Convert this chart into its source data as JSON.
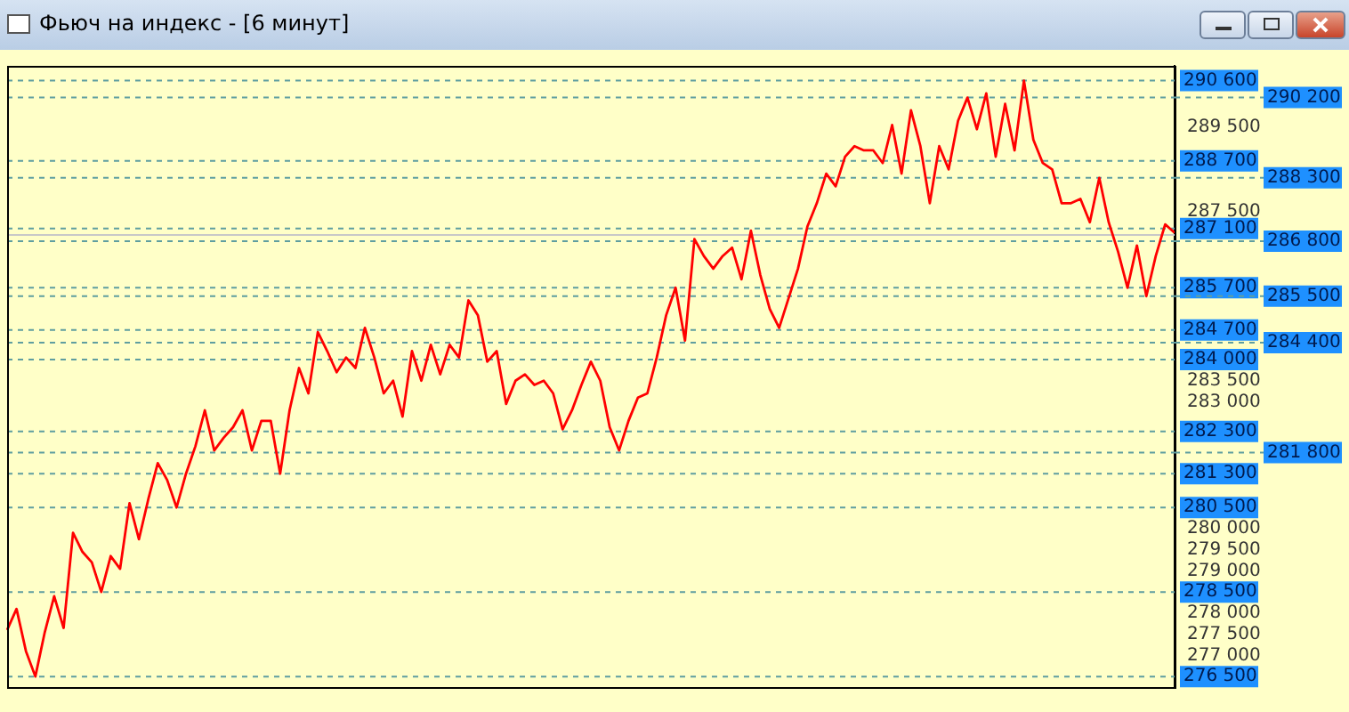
{
  "chart_data": {
    "type": "line",
    "title": "Фьюч на индекс - [6 минут]",
    "categories": [
      null,
      null,
      null,
      null,
      null,
      null,
      null,
      null,
      null,
      null,
      null,
      null,
      null,
      null,
      null,
      null,
      null,
      null,
      null,
      null,
      null,
      null,
      null,
      null,
      null,
      null,
      null,
      null,
      null,
      null,
      null,
      null,
      null,
      null,
      null,
      null,
      null,
      null,
      null,
      null,
      null,
      null,
      null,
      null,
      null,
      null,
      null,
      null,
      null,
      null,
      null,
      null,
      null,
      null,
      null,
      null,
      null,
      null,
      null,
      null,
      null,
      null,
      null,
      null,
      null,
      null,
      null,
      null,
      null,
      null,
      null,
      null,
      null,
      null,
      null,
      null,
      null,
      null,
      null,
      null,
      null,
      null,
      null,
      null,
      null,
      null,
      null,
      null,
      null,
      null,
      null,
      null,
      null,
      null,
      null,
      null,
      null,
      null,
      null,
      null,
      null,
      null,
      null,
      null,
      null,
      null,
      null,
      null,
      null,
      null,
      null,
      null,
      null,
      null,
      null,
      null,
      null,
      null,
      null,
      null,
      null,
      null,
      null,
      null,
      null
    ],
    "series": [
      {
        "color": "#ff0000",
        "values": [
          277600,
          278100,
          277100,
          276500,
          277550,
          278400,
          277650,
          279900,
          279450,
          279200,
          278500,
          279350,
          279050,
          280600,
          279750,
          280700,
          281550,
          281150,
          280500,
          281300,
          281950,
          282800,
          281850,
          282150,
          282400,
          282800,
          281850,
          282550,
          282550,
          281300,
          282800,
          283800,
          283200,
          284650,
          284200,
          283700,
          284050,
          283800,
          284750,
          284050,
          283200,
          283500,
          282650,
          284200,
          283500,
          284350,
          283650,
          284350,
          284050,
          285400,
          285050,
          283950,
          284200,
          282950,
          283500,
          283650,
          283400,
          283500,
          283200,
          282350,
          282800,
          283400,
          283950,
          283500,
          282400,
          281850,
          282550,
          283100,
          283200,
          284050,
          285050,
          285700,
          284450,
          286850,
          286450,
          286150,
          286450,
          286650,
          285900,
          287050,
          286000,
          285200,
          284750,
          285450,
          286150,
          287150,
          287700,
          288400,
          288100,
          288800,
          289050,
          288950,
          288950,
          288650,
          289550,
          288400,
          289900,
          289050,
          287700,
          289050,
          288500,
          289650,
          290200,
          289450,
          290300,
          288800,
          290050,
          288950,
          290600,
          289200,
          288650,
          288500,
          287700,
          287700,
          287800,
          287250,
          288300,
          287250,
          286550,
          285700,
          286700,
          285500,
          286450,
          287200,
          287000
        ]
      }
    ],
    "ylim": [
      276250,
      290950
    ],
    "yticks": [
      {
        "value": 277000,
        "label": "277 000"
      },
      {
        "value": 277500,
        "label": "277 500"
      },
      {
        "value": 278000,
        "label": "278 000"
      },
      {
        "value": 279000,
        "label": "279 000"
      },
      {
        "value": 279500,
        "label": "279 500"
      },
      {
        "value": 280000,
        "label": "280 000"
      },
      {
        "value": 283000,
        "label": "283 000"
      },
      {
        "value": 283500,
        "label": "283 500"
      },
      {
        "value": 287500,
        "label": "287 500"
      },
      {
        "value": 289500,
        "label": "289 500"
      }
    ],
    "ref_lines": [
      {
        "axis": "y",
        "value": 290600,
        "label": "290 600",
        "color": "#5f9ea0",
        "line_style": "dashed"
      },
      {
        "axis": "y",
        "value": 290200,
        "label": "290 200",
        "color": "#5f9ea0",
        "line_style": "dashed"
      },
      {
        "axis": "y",
        "value": 288700,
        "label": "288 700",
        "color": "#5f9ea0",
        "line_style": "dashed"
      },
      {
        "axis": "y",
        "value": 288300,
        "label": "288 300",
        "color": "#5f9ea0",
        "line_style": "dashed"
      },
      {
        "axis": "y",
        "value": 287100,
        "label": "287 100",
        "color": "#5f9ea0",
        "line_style": "dashed"
      },
      {
        "axis": "y",
        "value": 286800,
        "label": "286 800",
        "color": "#5f9ea0",
        "line_style": "dashed"
      },
      {
        "axis": "y",
        "value": 285700,
        "label": "285 700",
        "color": "#5f9ea0",
        "line_style": "dashed"
      },
      {
        "axis": "y",
        "value": 285500,
        "label": "285 500",
        "color": "#5f9ea0",
        "line_style": "dashed"
      },
      {
        "axis": "y",
        "value": 284700,
        "label": "284 700",
        "color": "#5f9ea0",
        "line_style": "dashed"
      },
      {
        "axis": "y",
        "value": 284400,
        "label": "284 400",
        "color": "#5f9ea0",
        "line_style": "dashed"
      },
      {
        "axis": "y",
        "value": 284000,
        "label": "284 000",
        "color": "#5f9ea0",
        "line_style": "dashed"
      },
      {
        "axis": "y",
        "value": 282300,
        "label": "282 300",
        "color": "#5f9ea0",
        "line_style": "dashed"
      },
      {
        "axis": "y",
        "value": 281800,
        "label": "281 800",
        "color": "#5f9ea0",
        "line_style": "dashed"
      },
      {
        "axis": "y",
        "value": 281300,
        "label": "281 300",
        "color": "#5f9ea0",
        "line_style": "dashed"
      },
      {
        "axis": "y",
        "value": 280500,
        "label": "280 500",
        "color": "#5f9ea0",
        "line_style": "dashed"
      },
      {
        "axis": "y",
        "value": 278500,
        "label": "278 500",
        "color": "#5f9ea0",
        "line_style": "dashed"
      },
      {
        "axis": "y",
        "value": 276500,
        "label": "276 500",
        "color": "#5f9ea0",
        "line_style": "dashed"
      },
      {
        "axis": "y",
        "value": 286950,
        "color": "#c8c8c8",
        "line_style": "solid"
      }
    ],
    "tick_labels": "y",
    "grid": false,
    "legend": false,
    "marker": "none",
    "line_style": "solid"
  }
}
